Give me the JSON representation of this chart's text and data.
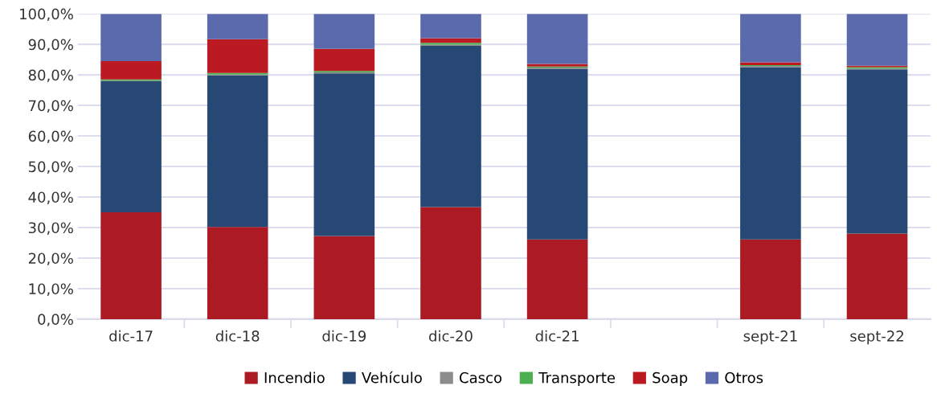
{
  "chart_data": {
    "type": "bar",
    "stacked": true,
    "categories": [
      "dic-17",
      "dic-18",
      "dic-19",
      "dic-20",
      "dic-21",
      null,
      "sept-21",
      "sept-22"
    ],
    "series": [
      {
        "name": "Incendio",
        "color": "#ac1a24",
        "values": [
          35.0,
          30.2,
          27.2,
          36.7,
          26.1,
          null,
          26.1,
          28.0
        ]
      },
      {
        "name": "Vehículo",
        "color": "#274774",
        "values": [
          42.9,
          49.6,
          53.3,
          52.8,
          55.9,
          null,
          56.4,
          53.8
        ]
      },
      {
        "name": "Casco",
        "color": "#8c8c8c",
        "values": [
          0.2,
          0.3,
          0.3,
          0.4,
          0.4,
          null,
          0.4,
          0.3
        ]
      },
      {
        "name": "Transporte",
        "color": "#4cb050",
        "values": [
          0.4,
          0.5,
          0.5,
          0.6,
          0.3,
          null,
          0.3,
          0.4
        ]
      },
      {
        "name": "Soap",
        "color": "#bb1a23",
        "values": [
          6.0,
          11.1,
          7.2,
          1.5,
          0.9,
          null,
          0.9,
          0.5
        ]
      },
      {
        "name": "Otros",
        "color": "#5a6aad",
        "values": [
          15.5,
          8.3,
          11.5,
          8.0,
          16.4,
          null,
          15.9,
          17.0
        ]
      }
    ],
    "ylim": [
      0,
      100
    ],
    "yticks": [
      {
        "value": 0,
        "label": "0,0%"
      },
      {
        "value": 10,
        "label": "10,0%"
      },
      {
        "value": 20,
        "label": "20,0%"
      },
      {
        "value": 30,
        "label": "30,0%"
      },
      {
        "value": 40,
        "label": "40,0%"
      },
      {
        "value": 50,
        "label": "50,0%"
      },
      {
        "value": 60,
        "label": "60,0%"
      },
      {
        "value": 70,
        "label": "70,0%"
      },
      {
        "value": 80,
        "label": "80,0%"
      },
      {
        "value": 90,
        "label": "90,0%"
      },
      {
        "value": 100,
        "label": "100,0%"
      }
    ],
    "grid": "y",
    "legend": "bottom"
  }
}
